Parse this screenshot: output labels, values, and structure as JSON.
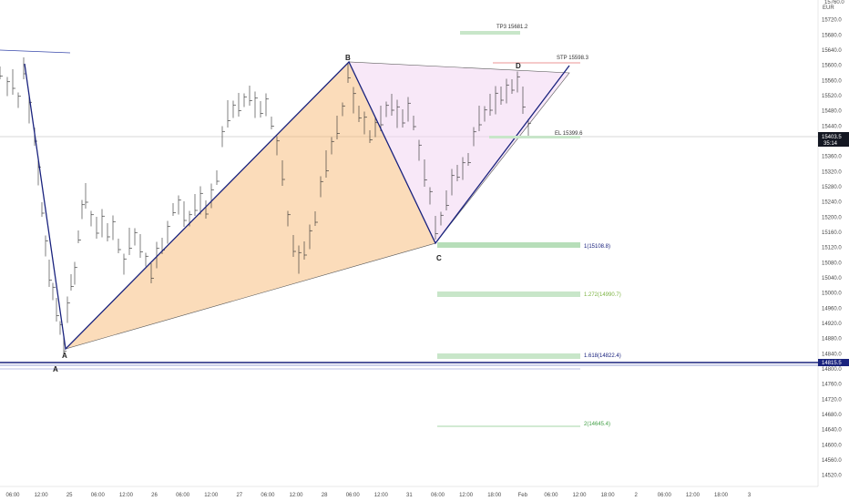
{
  "currency": "EUR",
  "top_price": "15760.0",
  "price_ticks": [
    {
      "v": 15720,
      "t": "15720.0"
    },
    {
      "v": 15680,
      "t": "15680.0"
    },
    {
      "v": 15640,
      "t": "15640.0"
    },
    {
      "v": 15600,
      "t": "15600.0"
    },
    {
      "v": 15560,
      "t": "15560.0"
    },
    {
      "v": 15520,
      "t": "15520.0"
    },
    {
      "v": 15480,
      "t": "15480.0"
    },
    {
      "v": 15440,
      "t": "15440.0"
    },
    {
      "v": 15360,
      "t": "15360.0"
    },
    {
      "v": 15320,
      "t": "15320.0"
    },
    {
      "v": 15280,
      "t": "15280.0"
    },
    {
      "v": 15240,
      "t": "15240.0"
    },
    {
      "v": 15200,
      "t": "15200.0"
    },
    {
      "v": 15160,
      "t": "15160.0"
    },
    {
      "v": 15120,
      "t": "15120.0"
    },
    {
      "v": 15080,
      "t": "15080.0"
    },
    {
      "v": 15040,
      "t": "15040.0"
    },
    {
      "v": 15000,
      "t": "15000.0"
    },
    {
      "v": 14960,
      "t": "14960.0"
    },
    {
      "v": 14920,
      "t": "14920.0"
    },
    {
      "v": 14880,
      "t": "14880.0"
    },
    {
      "v": 14840,
      "t": "14840.0"
    },
    {
      "v": 14800,
      "t": "14800.0"
    },
    {
      "v": 14760,
      "t": "14760.0"
    },
    {
      "v": 14720,
      "t": "14720.0"
    },
    {
      "v": 14680,
      "t": "14680.0"
    },
    {
      "v": 14640,
      "t": "14640.0"
    },
    {
      "v": 14600,
      "t": "14600.0"
    },
    {
      "v": 14560,
      "t": "14560.0"
    },
    {
      "v": 14520,
      "t": "14520.0"
    }
  ],
  "current_price": {
    "v": 15403.5,
    "label": "15403.5",
    "countdown": "35:14"
  },
  "level_badge": {
    "v": 14815.5,
    "label": "14815.5"
  },
  "time_ticks": [
    "06:00",
    "12:00",
    "25",
    "06:00",
    "12:00",
    "26",
    "06:00",
    "12:00",
    "27",
    "06:00",
    "12:00",
    "28",
    "06:00",
    "12:00",
    "31",
    "06:00",
    "12:00",
    "18:00",
    "Feb",
    "06:00",
    "12:00",
    "18:00",
    "2",
    "06:00",
    "12:00",
    "18:00",
    "3"
  ],
  "pattern_points": [
    {
      "name": "A",
      "price": 14860
    },
    {
      "name": "B",
      "price": 15595
    },
    {
      "name": "C",
      "price": 15140
    },
    {
      "name": "D",
      "price": 15582
    }
  ],
  "annotations": {
    "tp3": "TP3 15681.2",
    "stp": "STP 15598.3",
    "el": "EL 15399.6",
    "fib_1": "1(15108.8)",
    "fib_1272": "1.272(14990.7)",
    "fib_1618": "1.618(14822.4)",
    "fib_2": "2(14645.4)"
  },
  "colors": {
    "up": "#26a69a",
    "pattern_line": "#1a237e",
    "fill_abc": "#f7b267",
    "fill_bcd": "#f3d6f3",
    "zone_green": "#a5d6a7",
    "stop_red": "#e57373"
  }
}
